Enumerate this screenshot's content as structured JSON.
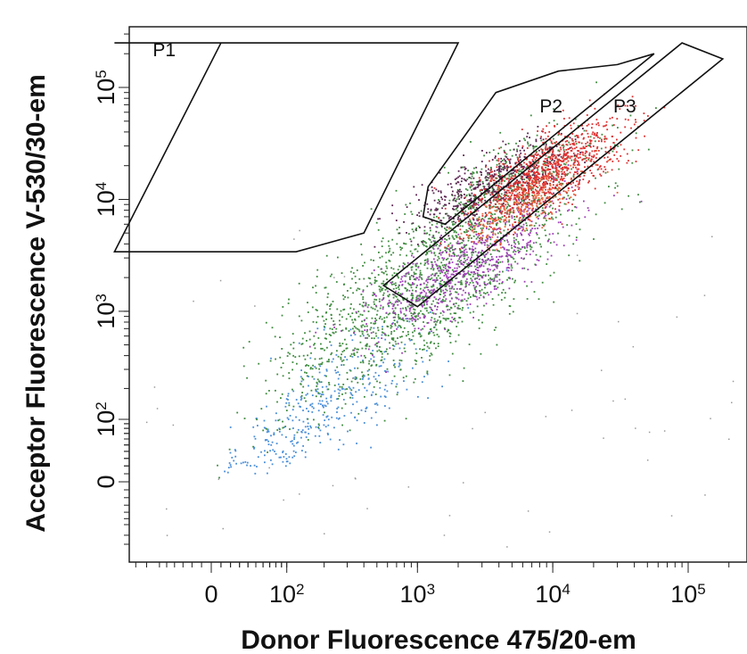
{
  "chart_data": {
    "type": "scatter",
    "xlabel": "Donor Fluorescence 475/20-em",
    "ylabel": "Acceptor  Fluorescence V-530/30-em",
    "x_scale": "biexponential",
    "y_scale": "biexponential",
    "x_ticks": [
      {
        "value": 0,
        "base": "0",
        "exp": ""
      },
      {
        "value": 100,
        "base": "10",
        "exp": "2"
      },
      {
        "value": 1000,
        "base": "10",
        "exp": "3"
      },
      {
        "value": 10000,
        "base": "10",
        "exp": "4"
      },
      {
        "value": 100000,
        "base": "10",
        "exp": "5"
      }
    ],
    "y_ticks": [
      {
        "value": 0,
        "base": "0",
        "exp": ""
      },
      {
        "value": 100,
        "base": "10",
        "exp": "2"
      },
      {
        "value": 1000,
        "base": "10",
        "exp": "3"
      },
      {
        "value": 10000,
        "base": "10",
        "exp": "4"
      },
      {
        "value": 100000,
        "base": "10",
        "exp": "5"
      }
    ],
    "grid": false,
    "gates": [
      {
        "name": "P1",
        "vertices": [
          [
            -150,
            250000
          ],
          [
            10,
            250000
          ],
          [
            -150,
            3400
          ],
          [
            120,
            3400
          ],
          [
            400,
            5000
          ],
          [
            2000,
            250000
          ]
        ]
      },
      {
        "name": "P2",
        "vertices": [
          [
            1100,
            7000
          ],
          [
            1600,
            6000
          ],
          [
            56000,
            200000
          ],
          [
            30000,
            160000
          ],
          [
            11000,
            140000
          ],
          [
            3800,
            90000
          ],
          [
            1200,
            13000
          ]
        ]
      },
      {
        "name": "P3",
        "vertices": [
          [
            560,
            1700
          ],
          [
            1000,
            1100
          ],
          [
            180000,
            180000
          ],
          [
            90000,
            250000
          ]
        ]
      }
    ],
    "gate_label_positions": [
      {
        "name": "P1",
        "x": -70,
        "y": 190000
      },
      {
        "name": "P2",
        "x": 8000,
        "y": 60000
      },
      {
        "name": "P3",
        "x": 28000,
        "y": 60000
      }
    ],
    "series_colors": {
      "blue": "#4a8fd8",
      "green": "#3f8c3f",
      "purple": "#a040b8",
      "red": "#e03030",
      "dark_violet": "#5a2450",
      "orange": "#e86a3a"
    },
    "populations": [
      {
        "color": "blue",
        "center": [
          200,
          140
        ],
        "spread": [
          0.42,
          0.42
        ],
        "count": 380
      },
      {
        "color": "green",
        "center": [
          1050,
          1500
        ],
        "spread": [
          0.55,
          0.5
        ],
        "count": 1500
      },
      {
        "color": "green",
        "center": [
          4500,
          12000
        ],
        "spread": [
          0.35,
          0.3
        ],
        "count": 500
      },
      {
        "color": "purple",
        "center": [
          2200,
          2600
        ],
        "spread": [
          0.35,
          0.3
        ],
        "count": 750
      },
      {
        "color": "dark_violet",
        "center": [
          3600,
          14000
        ],
        "spread": [
          0.3,
          0.2
        ],
        "count": 520
      },
      {
        "color": "red",
        "center": [
          9000,
          18000
        ],
        "spread": [
          0.28,
          0.24
        ],
        "count": 950
      },
      {
        "color": "orange",
        "center": [
          6000,
          9000
        ],
        "spread": [
          0.22,
          0.18
        ],
        "count": 260
      }
    ]
  }
}
